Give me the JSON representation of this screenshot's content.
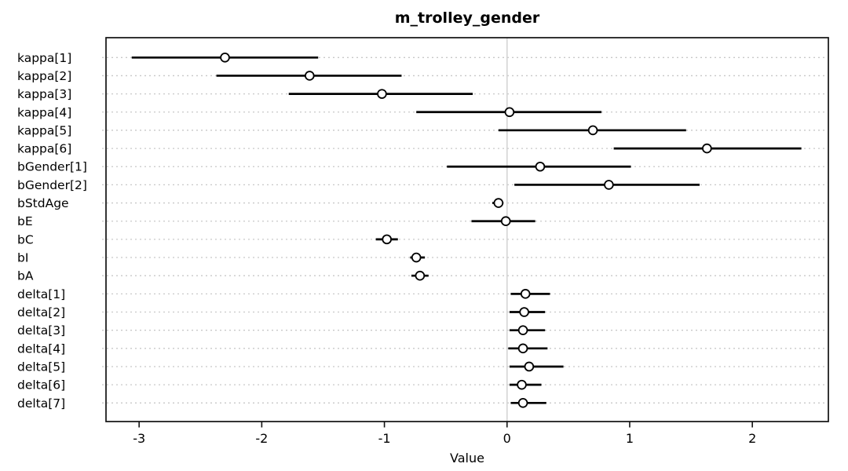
{
  "window": {
    "background": "#ffffff"
  },
  "chart_data": {
    "type": "scatter",
    "subtype": "coefficient-interval-plot",
    "title": "m_trolley_gender",
    "xlabel": "Value",
    "ylabel": "",
    "xlim": [
      -3.27,
      2.62
    ],
    "x_ticks": [
      -3,
      -2,
      -1,
      0,
      1,
      2
    ],
    "grid": "horizontal-dashed",
    "zero_line": true,
    "legend": "none",
    "marker": "open-circle",
    "points": [
      {
        "label": "kappa[1]",
        "mean": -2.3,
        "lo": -3.06,
        "hi": -1.54
      },
      {
        "label": "kappa[2]",
        "mean": -1.61,
        "lo": -2.37,
        "hi": -0.86
      },
      {
        "label": "kappa[3]",
        "mean": -1.02,
        "lo": -1.78,
        "hi": -0.28
      },
      {
        "label": "kappa[4]",
        "mean": 0.02,
        "lo": -0.74,
        "hi": 0.77
      },
      {
        "label": "kappa[5]",
        "mean": 0.7,
        "lo": -0.07,
        "hi": 1.46
      },
      {
        "label": "kappa[6]",
        "mean": 1.63,
        "lo": 0.87,
        "hi": 2.4
      },
      {
        "label": "bGender[1]",
        "mean": 0.27,
        "lo": -0.49,
        "hi": 1.01
      },
      {
        "label": "bGender[2]",
        "mean": 0.83,
        "lo": 0.06,
        "hi": 1.57
      },
      {
        "label": "bStdAge",
        "mean": -0.07,
        "lo": -0.12,
        "hi": -0.03
      },
      {
        "label": "bE",
        "mean": -0.01,
        "lo": -0.29,
        "hi": 0.23
      },
      {
        "label": "bC",
        "mean": -0.98,
        "lo": -1.07,
        "hi": -0.89
      },
      {
        "label": "bI",
        "mean": -0.74,
        "lo": -0.79,
        "hi": -0.67
      },
      {
        "label": "bA",
        "mean": -0.71,
        "lo": -0.78,
        "hi": -0.64
      },
      {
        "label": "delta[1]",
        "mean": 0.15,
        "lo": 0.03,
        "hi": 0.35
      },
      {
        "label": "delta[2]",
        "mean": 0.14,
        "lo": 0.02,
        "hi": 0.31
      },
      {
        "label": "delta[3]",
        "mean": 0.13,
        "lo": 0.02,
        "hi": 0.31
      },
      {
        "label": "delta[4]",
        "mean": 0.13,
        "lo": 0.01,
        "hi": 0.33
      },
      {
        "label": "delta[5]",
        "mean": 0.18,
        "lo": 0.02,
        "hi": 0.46
      },
      {
        "label": "delta[6]",
        "mean": 0.12,
        "lo": 0.02,
        "hi": 0.28
      },
      {
        "label": "delta[7]",
        "mean": 0.13,
        "lo": 0.03,
        "hi": 0.32
      }
    ]
  },
  "colors": {
    "interval_line": "#000000",
    "marker_stroke": "#000000",
    "marker_fill": "#ffffff",
    "gridline": "#c8c8c8",
    "zero_line": "#d4d4d4",
    "axis_border": "#111111",
    "text": "#000000"
  }
}
